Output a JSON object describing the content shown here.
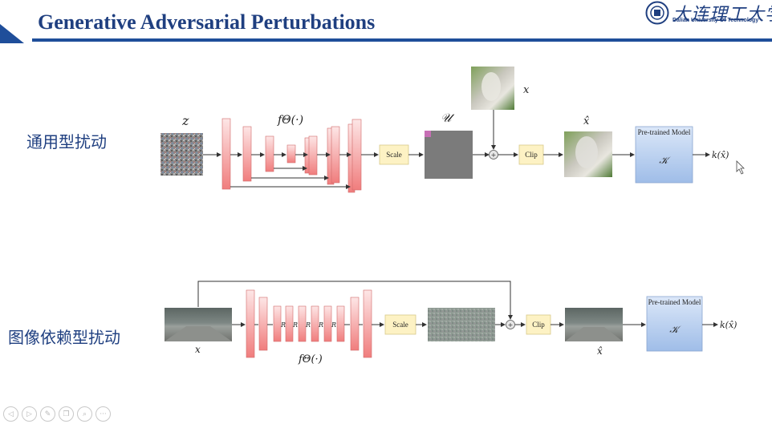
{
  "slide": {
    "title": "Generative Adversarial Perturbations"
  },
  "logo": {
    "name_cn": "大连理工大学",
    "name_en": "Dalian University Of Technology"
  },
  "sections": {
    "universal_label": "通用型扰动",
    "image_dependent_label": "图像依赖型扰动"
  },
  "diagram_top": {
    "noise_label": "z",
    "generator_label": "fΘ(·)",
    "scale_label": "Scale",
    "perturbation_label": "𝒰",
    "input_label": "x",
    "clip_label": "Clip",
    "output_label": "x̂",
    "model_title": "Pre-trained Model",
    "model_symbol": "𝒦",
    "result_label": "k(x̂)",
    "plus_symbol": "+"
  },
  "diagram_bottom": {
    "input_label": "x",
    "generator_label": "fΘ(·)",
    "resblock_label": "R",
    "scale_label": "Scale",
    "clip_label": "Clip",
    "output_label": "x̂",
    "model_title": "Pre-trained Model",
    "model_symbol": "𝒦",
    "result_label": "k(x̂)",
    "plus_symbol": "+"
  },
  "colors": {
    "title": "#1f3f80",
    "accent_bar": "#1f4e9a",
    "layer_fill": "#f28b8b",
    "scale_fill": "#fdf2c4",
    "model_fill": "#a9c4ea"
  },
  "nav": {
    "buttons": [
      "prev-icon",
      "next-icon",
      "pen-icon",
      "copy-icon",
      "zoom-icon",
      "more-icon"
    ],
    "glyphs": [
      "◁",
      "▷",
      "✎",
      "❐",
      "⌕",
      "···"
    ]
  }
}
